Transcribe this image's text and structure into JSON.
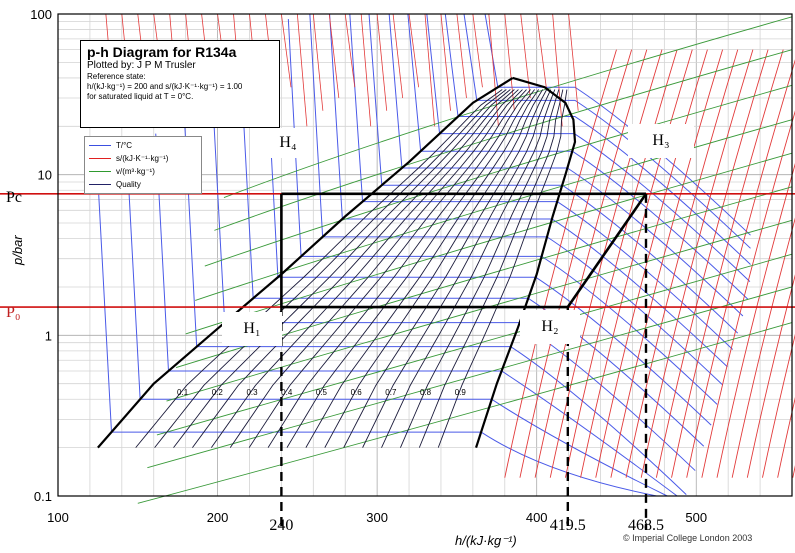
{
  "chart_data": {
    "type": "line",
    "title": "p-h Diagram for R134a",
    "plotted_by": "Plotted by: J P M Trusler",
    "reference_state": "Reference state:",
    "reference_line1": "h/(kJ·kg⁻¹) = 200 and s/(kJ·K⁻¹·kg⁻¹) = 1.00",
    "reference_line2": "for saturated liquid at T = 0°C.",
    "xlabel": "h/(kJ·kg⁻¹)",
    "ylabel": "p/bar",
    "xlim": [
      100,
      560
    ],
    "ylim": [
      0.1,
      100
    ],
    "yscale": "log",
    "x_ticks": [
      "100",
      "200",
      "300",
      "400",
      "500"
    ],
    "y_ticks": [
      "0.1",
      "1",
      "10",
      "100"
    ],
    "grid": true,
    "legend": [
      "T/°C",
      "s/(kJ·K⁻¹·kg⁻¹)",
      "v/(m³·kg⁻¹)",
      "Quality"
    ],
    "legend_colors": [
      "#3b4fe0",
      "#e02020",
      "#2f9a2f",
      "#222266"
    ],
    "copyright": "© Imperial College London 2003",
    "saturation_dome": {
      "liquid_line": {
        "h": [
          125,
          160,
          200,
          240,
          280,
          320,
          360,
          385
        ],
        "p": [
          0.2,
          0.5,
          1.1,
          2.4,
          5.5,
          12,
          28,
          40
        ]
      },
      "vapor_line": {
        "h": [
          362,
          375,
          388,
          400,
          410,
          418,
          424,
          423,
          418,
          405,
          385
        ],
        "p": [
          0.2,
          0.5,
          1.1,
          2.4,
          5.5,
          10,
          16,
          22,
          28,
          35,
          40
        ]
      }
    },
    "quality_labels": [
      "0.1",
      "0.2",
      "0.3",
      "0.4",
      "0.5",
      "0.6",
      "0.7",
      "0.8",
      "0.9"
    ],
    "cycle": {
      "points": [
        {
          "name": "H₁",
          "h": 240,
          "p": 1.5
        },
        {
          "name": "H₂",
          "h": 419.5,
          "p": 1.5
        },
        {
          "name": "H₃",
          "h": 468.5,
          "p": 7.6
        },
        {
          "name": "H₄",
          "h": 240,
          "p": 7.6
        }
      ],
      "h_markers": [
        "240",
        "419.5",
        "468.5"
      ],
      "h_values": [
        240,
        419.5,
        468.5
      ]
    },
    "pressure_lines": [
      {
        "name": "Pc",
        "p": 7.6
      },
      {
        "name": "P₀",
        "p": 1.5
      }
    ],
    "state_labels": [
      "H₄",
      "H₃",
      "H₁",
      "H₂"
    ]
  }
}
